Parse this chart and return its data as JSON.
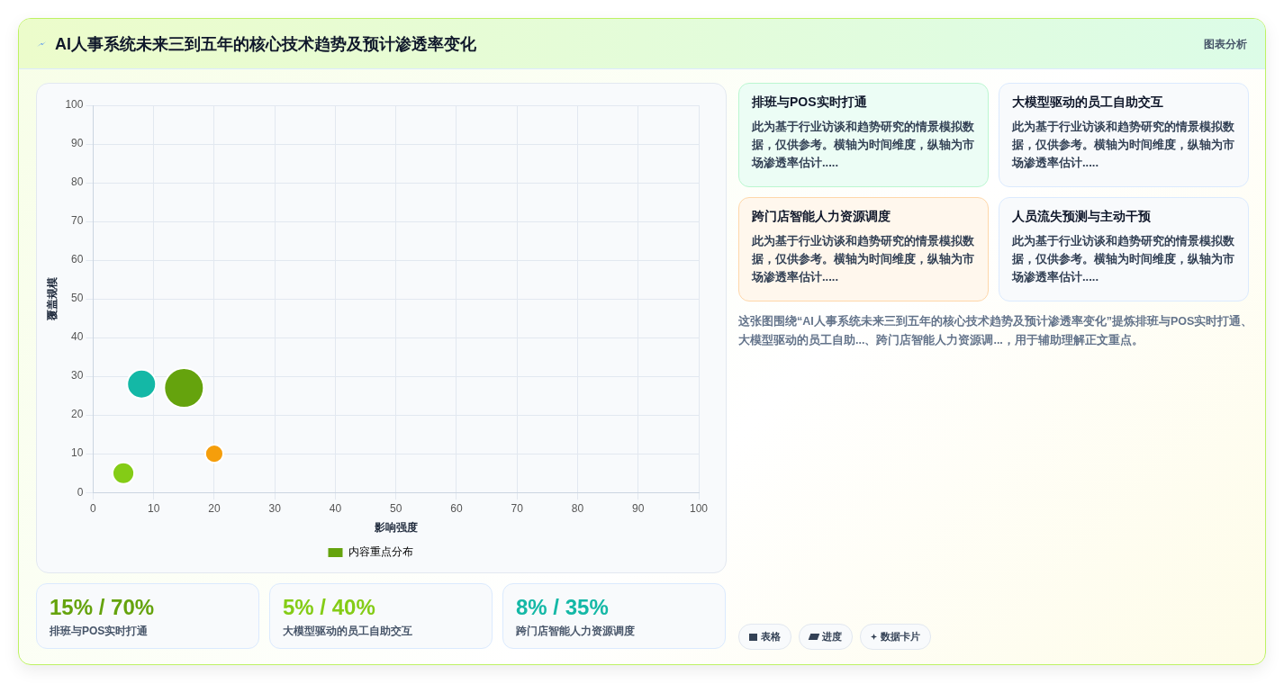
{
  "chart_data": [
    {
      "type": "bubble",
      "title": "AI人事系统未来三到五年的核心技术趋势及预计渗透率变化",
      "xlabel": "影响强度",
      "ylabel": "覆盖规模",
      "x": [
        15,
        8,
        5,
        20
      ],
      "series": [
        {
          "name": "内容重点分布",
          "colors": [
            "#65a30d",
            "#14b8a6",
            "#84cc16",
            "#f59e0b"
          ],
          "values": [
            27,
            28,
            5,
            10
          ],
          "sizes": [
            1,
            0.53,
            0.3,
            0.21
          ]
        }
      ],
      "xlim": [
        0,
        100
      ],
      "ylim": [
        0,
        100
      ],
      "xticks": [
        0,
        10,
        20,
        30,
        40,
        50,
        60,
        70,
        80,
        90,
        100
      ],
      "yticks": [
        0,
        10,
        20,
        30,
        40,
        50,
        60,
        70,
        80,
        90,
        100
      ],
      "grid": true,
      "legend": "bottom"
    },
    {
      "type": "other",
      "annotations": [
        "排班与POS实时打通",
        "此为基于行业访谈和趋势研究的情景模拟数据，仅供参考。横轴为时间维度，纵轴为市场渗透率估计.....",
        "大模型驱动的员工自助交互",
        "此为基于行业访谈和趋势研究的情景模拟数据，仅供参考。横轴为时间维度，纵轴为市场渗透率估计.....",
        "跨门店智能人力资源调度",
        "此为基于行业访谈和趋势研究的情景模拟数据，仅供参考。横轴为时间维度，纵轴为市场渗透率估计.....",
        "人员流失预测与主动干预",
        "此为基于行业访谈和趋势研究的情景模拟数据，仅供参考。横轴为时间维度，纵轴为市场渗透率估计.....",
        "这张图围绕“AI人事系统未来三到五年的核心技术趋势及预计渗透率变化”提炼排班与POS实时打通、大模型驱动的员工自助...、跨门店智能人力资源调...，用于辅助理解正文重点。"
      ]
    },
    {
      "type": "other",
      "annotations": [
        "15% / 70%",
        "排班与POS实时打通",
        "5% / 40%",
        "大模型驱动的员工自助交互",
        "8% / 35%",
        "跨门店智能人力资源调度"
      ]
    },
    {
      "type": "other",
      "annotations": [
        "表格",
        "进度",
        "数据卡片"
      ]
    },
    {
      "type": "other",
      "annotations": [
        "图表分析"
      ]
    }
  ]
}
